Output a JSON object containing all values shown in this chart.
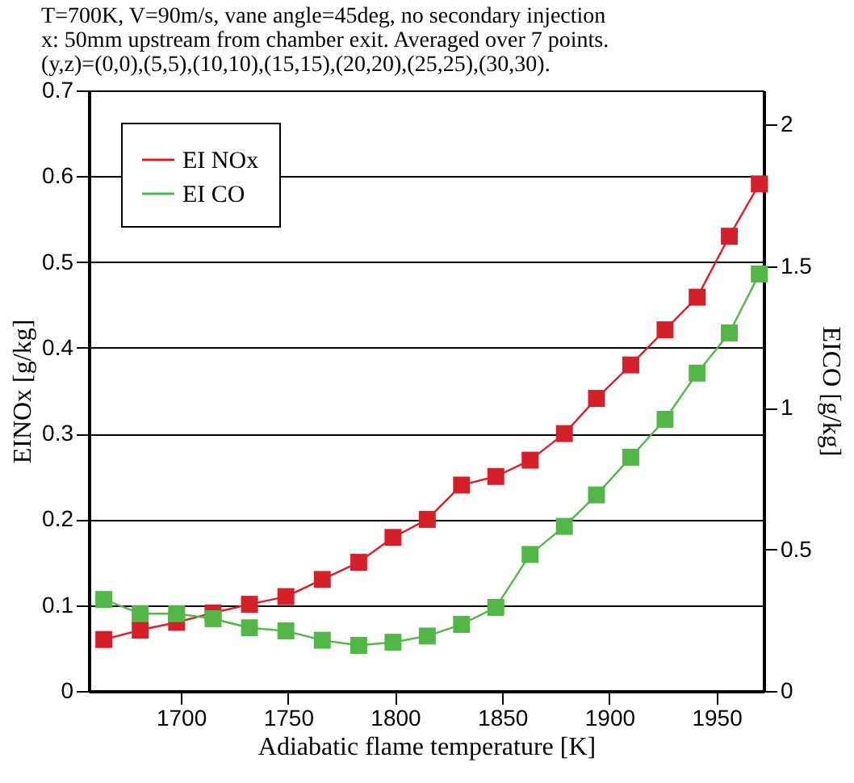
{
  "chart_data": {
    "type": "line",
    "title": "T=700K, V=90m/s, vane angle=45deg, no secondary injection\nx: 50mm upstream from chamber exit. Averaged over 7 points.\n(y,z)=(0,0),(5,5),(10,10),(15,15),(20,20),(25,25),(30,30).",
    "xlabel": "Adiabatic flame temperature [K]",
    "ylabel": "EINOx [g/kg]",
    "y2label": "EICO [g/kg]",
    "x": [
      1664,
      1681,
      1698,
      1715,
      1732,
      1749,
      1766,
      1783,
      1799,
      1815,
      1831,
      1847,
      1863,
      1879,
      1894,
      1910,
      1926,
      1941,
      1956,
      1970
    ],
    "series": [
      {
        "name": "EI NOx",
        "color": "#d62029",
        "values": [
          0.06,
          0.071,
          0.08,
          0.091,
          0.101,
          0.11,
          0.13,
          0.15,
          0.179,
          0.2,
          0.24,
          0.25,
          0.269,
          0.3,
          0.341,
          0.38,
          0.421,
          0.459,
          0.53,
          0.591
        ]
      },
      {
        "name": "EI CO",
        "color": "#52b747",
        "axis": "y2",
        "values": [
          0.323,
          0.273,
          0.273,
          0.255,
          0.223,
          0.212,
          0.179,
          0.161,
          0.172,
          0.194,
          0.235,
          0.295,
          0.482,
          0.581,
          0.692,
          0.825,
          0.959,
          1.122,
          1.264,
          1.472
        ]
      }
    ],
    "xlim": [
      1657,
      1972
    ],
    "xticks": [
      1700,
      1750,
      1800,
      1850,
      1900,
      1950
    ],
    "ylim": [
      0,
      0.7
    ],
    "yticks": [
      0,
      0.1,
      0.2,
      0.3,
      0.4,
      0.5,
      0.6,
      0.7
    ],
    "y2lim": [
      0,
      2.12
    ],
    "y2ticks": [
      0,
      0.5,
      1,
      1.5,
      2
    ],
    "grid": "y",
    "legend": "top left",
    "marker": "square",
    "line_style": "solid"
  }
}
